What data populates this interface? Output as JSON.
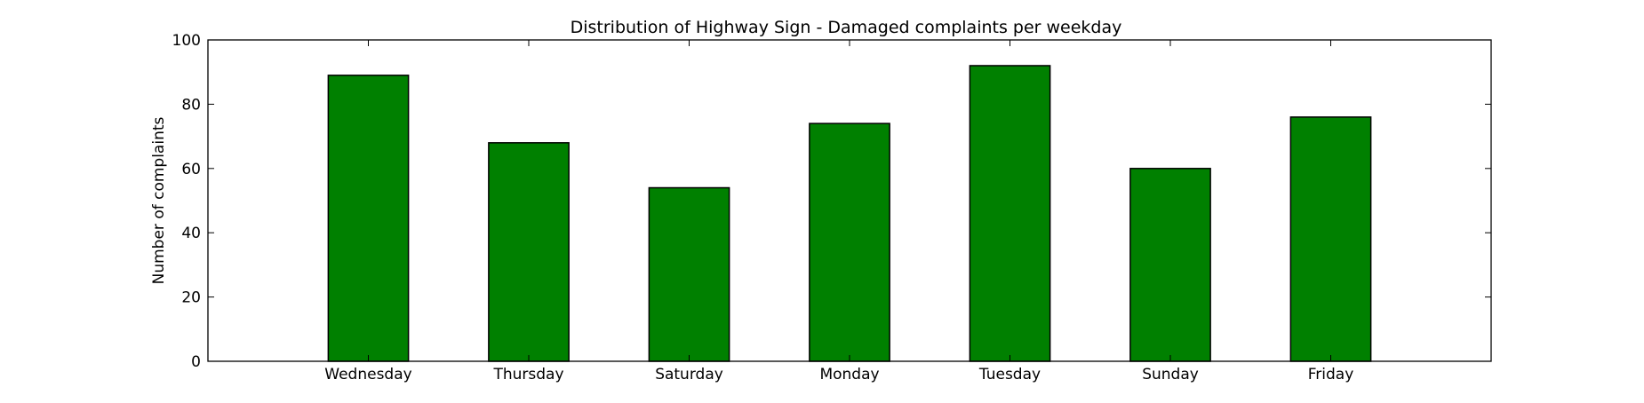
{
  "chart_data": {
    "type": "bar",
    "title": "Distribution of  Highway Sign - Damaged complaints per weekday",
    "xlabel": "",
    "ylabel": "Number of complaints",
    "categories": [
      "Wednesday",
      "Thursday",
      "Saturday",
      "Monday",
      "Tuesday",
      "Sunday",
      "Friday"
    ],
    "values": [
      89,
      68,
      54,
      74,
      92,
      60,
      76
    ],
    "ylim": [
      0,
      100
    ],
    "yticks": [
      0,
      20,
      40,
      60,
      80,
      100
    ],
    "ytick_labels": [
      "0",
      "20",
      "40",
      "60",
      "80",
      "100"
    ],
    "grid": false,
    "legend": "none",
    "colors": {
      "bar_fill": "#008000",
      "bar_edge": "#000000",
      "axes_edge": "#000000",
      "background": "#ffffff"
    }
  }
}
